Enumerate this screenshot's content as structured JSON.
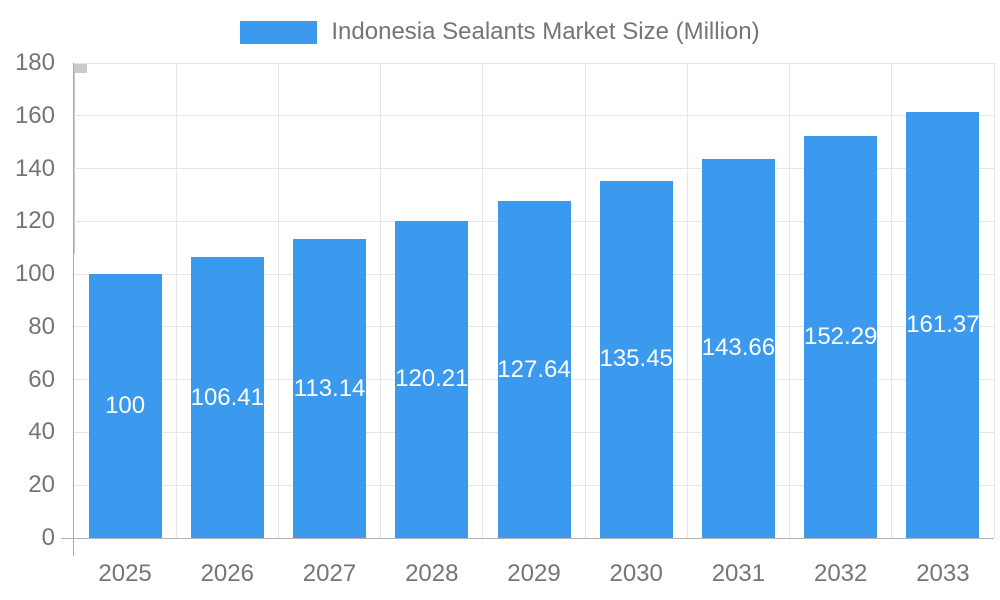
{
  "chart_data": {
    "type": "bar",
    "title": "",
    "legend": "Indonesia Sealants Market Size (Million)",
    "legend_position": "top",
    "categories": [
      "2025",
      "2026",
      "2027",
      "2028",
      "2029",
      "2030",
      "2031",
      "2032",
      "2033"
    ],
    "values": [
      100,
      106.41,
      113.14,
      120.21,
      127.64,
      135.45,
      143.66,
      152.29,
      161.37
    ],
    "value_labels": [
      "100",
      "106.41",
      "113.14",
      "120.21",
      "127.64",
      "135.45",
      "143.66",
      "152.29",
      "161.37"
    ],
    "xlabel": "",
    "ylabel": "",
    "ylim": [
      0,
      180
    ],
    "yticks": [
      0,
      20,
      40,
      60,
      80,
      100,
      120,
      140,
      160,
      180
    ],
    "grid": true,
    "bar_color": "#3B99EE",
    "value_label_color": "#FFFFFF",
    "axis_text_color": "#757575",
    "gridline_color": "#E6E6E6",
    "axis_line_color": "#A9A9A9",
    "tick_color": "#C9C9C9",
    "background_color": "#FFFFFF"
  }
}
